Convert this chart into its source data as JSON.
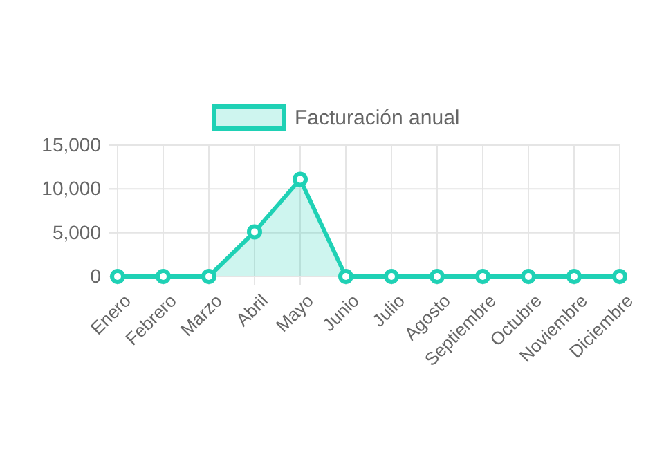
{
  "chart_data": {
    "type": "area",
    "categories": [
      "Enero",
      "Febrero",
      "Marzo",
      "Abril",
      "Mayo",
      "Junio",
      "Julio",
      "Agosto",
      "Septiembre",
      "Octubre",
      "Noviembre",
      "Diciembre"
    ],
    "series": [
      {
        "name": "Facturación anual",
        "color": "#1fd1b5",
        "values": [
          0,
          0,
          0,
          5100,
          11100,
          0,
          0,
          0,
          0,
          0,
          0,
          0
        ]
      }
    ],
    "ylim": [
      0,
      15000
    ],
    "yticks": [
      {
        "value": 0,
        "label": "0"
      },
      {
        "value": 5000,
        "label": "5,000"
      },
      {
        "value": 10000,
        "label": "10,000"
      },
      {
        "value": 15000,
        "label": "15,000"
      }
    ],
    "grid": true,
    "legend": "top",
    "marker": "circle"
  }
}
